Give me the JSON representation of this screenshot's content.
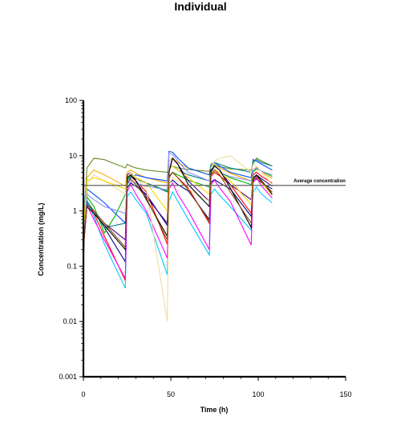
{
  "chart_data": {
    "type": "line",
    "title": "Individual",
    "xlabel": "Time (h)",
    "ylabel": "Concentration (mg/L)",
    "xlim": [
      0,
      150
    ],
    "ylim": [
      0.001,
      100
    ],
    "yscale": "log",
    "x_ticks": [
      0,
      50,
      100,
      150
    ],
    "x_tick_labels": [
      "0",
      "50",
      "100",
      "150"
    ],
    "y_ticks": [
      0.001,
      0.01,
      0.1,
      1,
      10,
      100
    ],
    "y_tick_labels": [
      "0.001",
      "0.01",
      "0.1",
      "1",
      "10",
      "100"
    ],
    "grid": false,
    "legend": "none",
    "reference_line": {
      "label": "Average concentration",
      "y": 2.9,
      "color": "#6e6e6e"
    },
    "series": [
      {
        "color": "#000080",
        "x": [
          0,
          1,
          3,
          6,
          12,
          24,
          25,
          27,
          30,
          36,
          48,
          49,
          51,
          54,
          60,
          72,
          73,
          75,
          78,
          84,
          96,
          97,
          99,
          102,
          108
        ],
        "y": [
          0.09,
          1.4,
          1.25,
          1.0,
          0.5,
          0.12,
          2.6,
          3.2,
          2.8,
          2.0,
          0.55,
          3.1,
          3.6,
          3.0,
          2.3,
          0.7,
          3.3,
          3.7,
          3.2,
          2.5,
          0.8,
          3.4,
          3.8,
          3.2,
          2.5
        ]
      },
      {
        "color": "#ff0000",
        "x": [
          0,
          1,
          3,
          6,
          12,
          24,
          25,
          27,
          30,
          36,
          48,
          49,
          51,
          54,
          60,
          72,
          73,
          75,
          78,
          84,
          96,
          97,
          99,
          102,
          108
        ],
        "y": [
          0.15,
          1.6,
          1.3,
          0.9,
          0.35,
          0.055,
          3.5,
          4.2,
          3.5,
          2.2,
          0.25,
          4.0,
          5.0,
          4.0,
          2.6,
          0.6,
          4.2,
          5.0,
          4.3,
          3.0,
          0.9,
          4.5,
          5.0,
          4.2,
          3.2
        ]
      },
      {
        "color": "#00c8ff",
        "x": [
          0,
          1,
          3,
          6,
          12,
          24,
          25,
          27,
          30,
          36,
          48,
          49,
          51,
          54,
          60,
          72,
          73,
          75,
          78,
          84,
          96,
          97,
          99,
          102,
          108
        ],
        "y": [
          0.2,
          2.0,
          1.3,
          0.8,
          0.25,
          0.04,
          1.8,
          2.2,
          1.6,
          0.9,
          0.07,
          1.5,
          2.2,
          1.5,
          0.7,
          0.16,
          2.0,
          2.5,
          1.9,
          1.2,
          0.45,
          2.2,
          2.7,
          2.0,
          1.4
        ]
      },
      {
        "color": "#ff00ff",
        "x": [
          0,
          1,
          3,
          6,
          12,
          24,
          25,
          27,
          30,
          36,
          48,
          49,
          51,
          54,
          60,
          72,
          73,
          75,
          78,
          84,
          96,
          97,
          99,
          102,
          108
        ],
        "y": [
          0.15,
          1.5,
          1.1,
          0.7,
          0.3,
          0.06,
          2.2,
          3.0,
          2.0,
          1.0,
          0.14,
          2.5,
          3.2,
          2.0,
          1.0,
          0.2,
          3.0,
          3.6,
          2.6,
          1.5,
          0.24,
          3.2,
          4.0,
          2.8,
          1.7
        ]
      },
      {
        "color": "#00b400",
        "x": [
          0,
          2,
          6,
          12,
          18,
          24,
          25,
          27,
          30,
          36,
          48,
          49,
          51,
          54,
          60,
          72,
          73,
          75,
          78,
          84,
          96,
          97,
          99,
          102,
          108
        ],
        "y": [
          0.5,
          1.8,
          1.2,
          0.4,
          0.8,
          2.0,
          3.8,
          4.5,
          4.0,
          3.2,
          2.3,
          4.2,
          5.0,
          4.5,
          3.6,
          2.7,
          4.8,
          5.5,
          5.0,
          4.0,
          3.0,
          5.0,
          5.8,
          5.2,
          4.2
        ]
      },
      {
        "color": "#ffaa00",
        "x": [
          0,
          2,
          6,
          12,
          24,
          25,
          27,
          30,
          36,
          48,
          49,
          51,
          54,
          60,
          72,
          73,
          75,
          78,
          84,
          96,
          97,
          99,
          102,
          108
        ],
        "y": [
          0.3,
          4.0,
          5.5,
          4.5,
          2.8,
          5.0,
          5.5,
          4.8,
          4.0,
          3.2,
          8.0,
          9.0,
          7.5,
          6.0,
          4.5,
          6.5,
          7.0,
          6.0,
          4.8,
          3.5,
          5.5,
          6.2,
          5.0,
          3.8
        ]
      },
      {
        "color": "#6b8e23",
        "x": [
          0,
          2,
          6,
          12,
          24,
          25,
          27,
          30,
          36,
          48,
          49,
          51,
          54,
          60,
          72,
          73,
          75,
          78,
          84,
          96,
          97,
          99,
          102,
          108
        ],
        "y": [
          0.4,
          6.0,
          9.0,
          8.5,
          6.0,
          7.0,
          6.5,
          6.0,
          5.5,
          5.0,
          6.0,
          6.5,
          6.0,
          5.6,
          5.2,
          6.2,
          6.8,
          6.3,
          5.8,
          5.5,
          7.0,
          9.0,
          8.0,
          6.5
        ]
      },
      {
        "color": "#0050ff",
        "x": [
          0,
          2,
          6,
          12,
          24,
          25,
          27,
          30,
          36,
          48,
          49,
          51,
          54,
          60,
          72,
          73,
          75,
          78,
          84,
          96,
          97,
          99,
          102,
          108
        ],
        "y": [
          0.3,
          2.5,
          2.0,
          1.4,
          0.6,
          3.0,
          4.0,
          4.5,
          4.0,
          3.5,
          12.0,
          11.5,
          9.0,
          6.0,
          4.5,
          7.0,
          7.5,
          6.5,
          5.0,
          4.0,
          8.5,
          8.0,
          7.0,
          5.5
        ]
      },
      {
        "color": "#008080",
        "x": [
          0,
          2,
          6,
          12,
          24,
          25,
          27,
          30,
          36,
          48,
          49,
          51,
          54,
          60,
          72,
          73,
          75,
          78,
          84,
          96,
          97,
          99,
          102,
          108
        ],
        "y": [
          0.3,
          1.5,
          1.0,
          0.5,
          0.6,
          3.5,
          4.2,
          3.8,
          3.2,
          2.2,
          6.0,
          6.5,
          5.5,
          4.5,
          3.5,
          7.0,
          7.5,
          7.0,
          6.0,
          5.0,
          8.0,
          8.5,
          7.5,
          6.5
        ]
      },
      {
        "color": "#4b0082",
        "x": [
          0,
          2,
          6,
          12,
          24,
          25,
          27,
          30,
          36,
          48,
          49,
          51,
          54,
          60,
          72,
          73,
          75,
          78,
          84,
          96,
          97,
          99,
          102,
          108
        ],
        "y": [
          0.2,
          1.3,
          1.0,
          0.6,
          0.3,
          4.5,
          5.0,
          3.5,
          1.8,
          0.6,
          5.5,
          9.0,
          7.0,
          3.5,
          1.5,
          5.0,
          6.5,
          5.5,
          3.0,
          1.6,
          4.0,
          4.5,
          3.8,
          2.8
        ]
      },
      {
        "color": "#9090ff",
        "x": [
          0,
          2,
          6,
          12,
          24,
          25,
          27,
          30,
          36,
          48,
          49,
          51,
          54,
          60,
          72,
          73,
          75,
          78,
          84,
          96,
          97,
          99,
          102,
          108
        ],
        "y": [
          0.3,
          2.0,
          1.6,
          1.2,
          0.9,
          3.0,
          3.5,
          3.2,
          2.8,
          2.4,
          11.0,
          10.5,
          8.0,
          5.0,
          3.5,
          5.0,
          5.5,
          5.0,
          4.2,
          3.5,
          5.5,
          6.0,
          5.2,
          4.5
        ]
      },
      {
        "color": "#f0dca0",
        "x": [
          0,
          2,
          6,
          12,
          24,
          25,
          27,
          30,
          36,
          48,
          49,
          51,
          54,
          60,
          72,
          73,
          75,
          78,
          84,
          96,
          97,
          99,
          102,
          108
        ],
        "y": [
          0.5,
          3.0,
          4.5,
          3.5,
          2.0,
          4.0,
          5.0,
          4.0,
          2.5,
          0.01,
          3.0,
          4.0,
          3.5,
          2.5,
          1.5,
          6.0,
          8.0,
          9.0,
          10.0,
          5.0,
          7.0,
          6.5,
          5.0,
          3.0
        ]
      },
      {
        "color": "#ffd700",
        "x": [
          0,
          2,
          6,
          12,
          24,
          25,
          27,
          30,
          36,
          48,
          49,
          51,
          54,
          60,
          72,
          73,
          75,
          78,
          84,
          96,
          97,
          99,
          102,
          108
        ],
        "y": [
          0.4,
          3.5,
          4.0,
          3.5,
          2.5,
          4.0,
          4.5,
          4.0,
          3.2,
          1.0,
          6.0,
          6.5,
          5.5,
          4.0,
          2.0,
          5.0,
          5.5,
          5.0,
          3.5,
          1.3,
          4.0,
          4.2,
          3.2,
          1.9
        ]
      },
      {
        "color": "#000000",
        "x": [
          0,
          2,
          6,
          12,
          24,
          25,
          27,
          30,
          36,
          48,
          49,
          51,
          54,
          60,
          72,
          73,
          75,
          78,
          84,
          96,
          97,
          99,
          102,
          108
        ],
        "y": [
          0.25,
          1.2,
          0.9,
          0.55,
          0.2,
          4.0,
          4.5,
          3.5,
          1.6,
          0.35,
          5.0,
          9.0,
          7.0,
          3.0,
          1.2,
          5.5,
          6.5,
          5.5,
          2.6,
          0.5,
          3.8,
          4.5,
          3.5,
          2.0
        ]
      },
      {
        "color": "#8b4513",
        "x": [
          0,
          2,
          6,
          12,
          24,
          25,
          27,
          30,
          36,
          48,
          49,
          51,
          54,
          60,
          72,
          73,
          75,
          78,
          84,
          96,
          97,
          99,
          102,
          108
        ],
        "y": [
          0.2,
          1.3,
          1.0,
          0.6,
          0.22,
          3.2,
          3.8,
          3.0,
          1.7,
          0.3,
          4.2,
          5.0,
          4.0,
          2.4,
          0.65,
          4.5,
          5.5,
          4.5,
          2.2,
          0.6,
          3.5,
          4.2,
          3.3,
          2.2
        ]
      }
    ]
  }
}
